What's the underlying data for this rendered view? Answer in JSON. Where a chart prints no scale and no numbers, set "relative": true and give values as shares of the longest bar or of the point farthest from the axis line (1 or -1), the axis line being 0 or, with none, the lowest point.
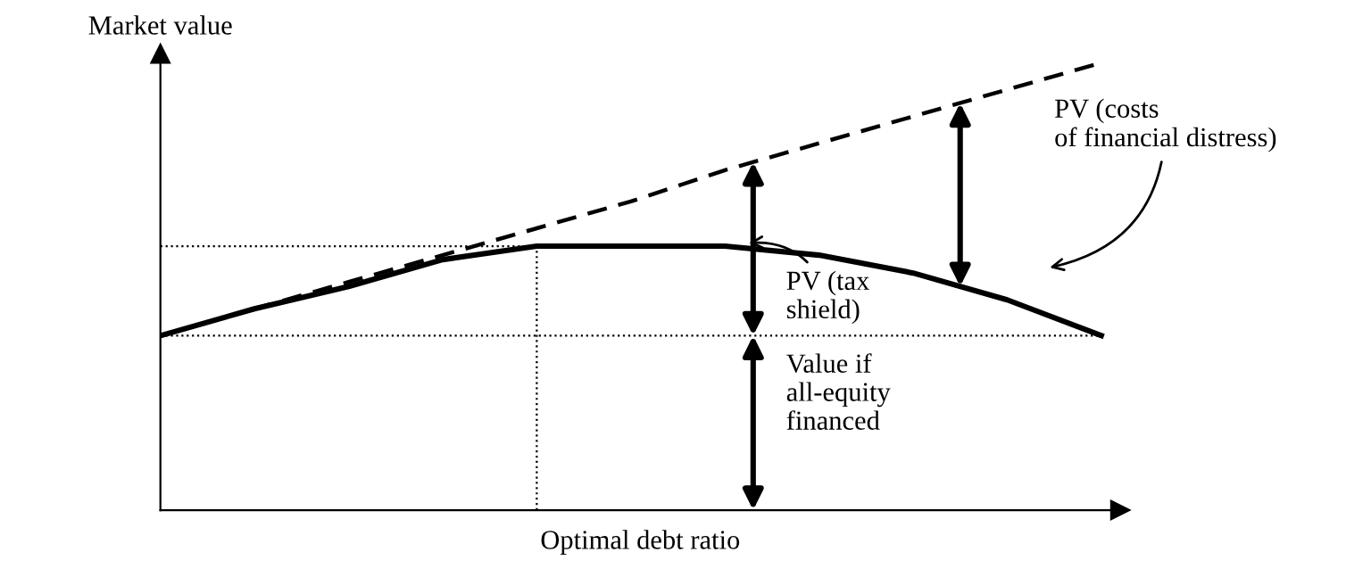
{
  "chart_data": {
    "type": "line",
    "relative": true,
    "xlabel": "Optimal debt ratio",
    "ylabel": "Market value",
    "categories": [
      null,
      null,
      null,
      null,
      null,
      null,
      null,
      null,
      null,
      null,
      null
    ],
    "series": [
      {
        "color": "#000000",
        "line_style": "dashed",
        "values": [
          0.39,
          0.45,
          0.51,
          0.57,
          0.63,
          0.69,
          0.76,
          0.82,
          0.88,
          0.94,
          1.0
        ]
      },
      {
        "color": "#000000",
        "line_style": "solid",
        "values": [
          0.39,
          0.45,
          0.5,
          0.56,
          0.59,
          0.59,
          0.59,
          0.57,
          0.53,
          0.47,
          0.39
        ]
      }
    ],
    "ref_lines": [
      {
        "axis": "y",
        "value": 0.39,
        "line_style": "dotted",
        "color": "#000000"
      }
    ],
    "annotations": [
      "PV (tax\nshield)",
      "Value if\nall-equity\nfinanced",
      "PV (costs\nof financial distress)"
    ],
    "legend": false,
    "tick_labels": false,
    "marker": "none"
  }
}
